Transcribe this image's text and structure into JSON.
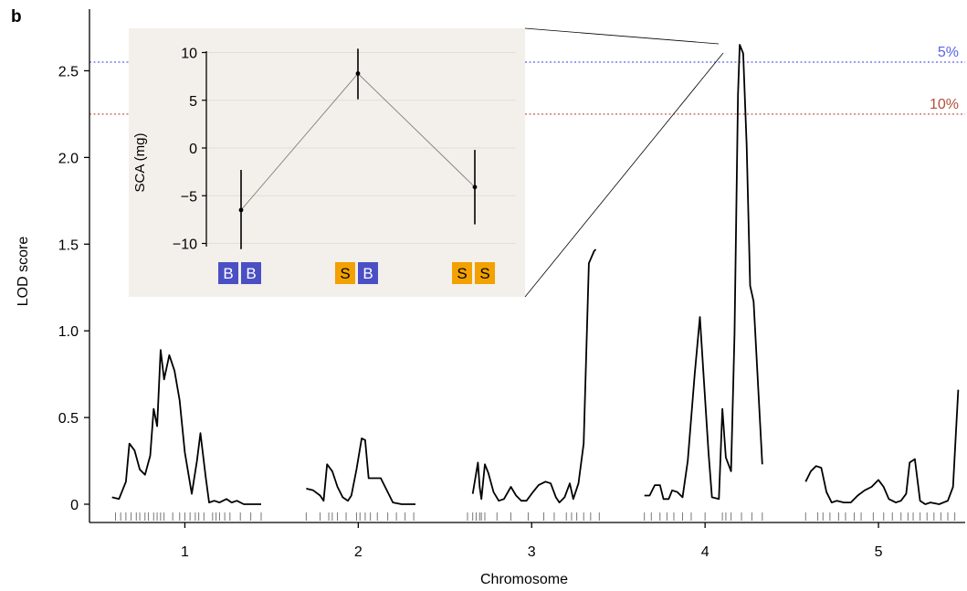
{
  "panel_label": "b",
  "chart_data": [
    {
      "type": "line",
      "xlabel": "Chromosome",
      "ylabel": "LOD score",
      "ylim": [
        0,
        2.75
      ],
      "yticks": [
        0,
        0.5,
        1.0,
        1.5,
        2.0,
        2.5
      ],
      "ytick_labels": [
        "0",
        "0.5",
        "1.0",
        "1.5",
        "2.0",
        "2.5"
      ],
      "xticks": [
        1,
        2,
        3,
        4,
        5
      ],
      "xtick_labels": [
        "1",
        "2",
        "3",
        "4",
        "5"
      ],
      "grid": false,
      "thresholds": [
        {
          "label": "5%",
          "value": 2.55,
          "color": "#5b63e6"
        },
        {
          "label": "10%",
          "value": 2.25,
          "color": "#b0503a"
        }
      ],
      "series": [
        {
          "chromosome": "1",
          "points": [
            [
              0.58,
              0.04
            ],
            [
              0.62,
              0.03
            ],
            [
              0.66,
              0.13
            ],
            [
              0.68,
              0.35
            ],
            [
              0.71,
              0.31
            ],
            [
              0.74,
              0.2
            ],
            [
              0.77,
              0.17
            ],
            [
              0.8,
              0.28
            ],
            [
              0.82,
              0.55
            ],
            [
              0.84,
              0.45
            ],
            [
              0.86,
              0.89
            ],
            [
              0.88,
              0.72
            ],
            [
              0.91,
              0.86
            ],
            [
              0.94,
              0.77
            ],
            [
              0.97,
              0.6
            ],
            [
              1.0,
              0.3
            ],
            [
              1.04,
              0.06
            ],
            [
              1.07,
              0.25
            ],
            [
              1.09,
              0.41
            ],
            [
              1.12,
              0.16
            ],
            [
              1.14,
              0.01
            ],
            [
              1.17,
              0.02
            ],
            [
              1.2,
              0.01
            ],
            [
              1.24,
              0.03
            ],
            [
              1.27,
              0.01
            ],
            [
              1.3,
              0.02
            ],
            [
              1.34,
              0.0
            ],
            [
              1.4,
              0.0
            ],
            [
              1.44,
              0.0
            ]
          ]
        },
        {
          "chromosome": "2",
          "points": [
            [
              1.7,
              0.09
            ],
            [
              1.74,
              0.08
            ],
            [
              1.78,
              0.05
            ],
            [
              1.8,
              0.02
            ],
            [
              1.82,
              0.23
            ],
            [
              1.85,
              0.19
            ],
            [
              1.88,
              0.1
            ],
            [
              1.91,
              0.04
            ],
            [
              1.94,
              0.02
            ],
            [
              1.96,
              0.05
            ],
            [
              1.99,
              0.2
            ],
            [
              2.02,
              0.38
            ],
            [
              2.04,
              0.37
            ],
            [
              2.06,
              0.15
            ],
            [
              2.1,
              0.15
            ],
            [
              2.13,
              0.15
            ],
            [
              2.16,
              0.09
            ],
            [
              2.2,
              0.01
            ],
            [
              2.25,
              0.0
            ],
            [
              2.3,
              0.0
            ],
            [
              2.33,
              0.0
            ]
          ]
        },
        {
          "chromosome": "3",
          "points": [
            [
              2.66,
              0.06
            ],
            [
              2.69,
              0.24
            ],
            [
              2.7,
              0.1
            ],
            [
              2.71,
              0.03
            ],
            [
              2.73,
              0.23
            ],
            [
              2.75,
              0.18
            ],
            [
              2.78,
              0.07
            ],
            [
              2.81,
              0.02
            ],
            [
              2.84,
              0.03
            ],
            [
              2.88,
              0.1
            ],
            [
              2.91,
              0.05
            ],
            [
              2.94,
              0.02
            ],
            [
              2.97,
              0.02
            ],
            [
              3.0,
              0.06
            ],
            [
              3.04,
              0.11
            ],
            [
              3.08,
              0.13
            ],
            [
              3.11,
              0.12
            ],
            [
              3.14,
              0.04
            ],
            [
              3.16,
              0.01
            ],
            [
              3.19,
              0.04
            ],
            [
              3.22,
              0.12
            ],
            [
              3.24,
              0.03
            ],
            [
              3.27,
              0.12
            ],
            [
              3.3,
              0.35
            ],
            [
              3.33,
              1.39
            ],
            [
              3.36,
              1.46
            ],
            [
              3.37,
              1.47
            ]
          ]
        },
        {
          "chromosome": "4",
          "points": [
            [
              3.65,
              0.05
            ],
            [
              3.68,
              0.05
            ],
            [
              3.71,
              0.11
            ],
            [
              3.74,
              0.11
            ],
            [
              3.76,
              0.03
            ],
            [
              3.79,
              0.03
            ],
            [
              3.81,
              0.08
            ],
            [
              3.84,
              0.07
            ],
            [
              3.87,
              0.04
            ],
            [
              3.9,
              0.25
            ],
            [
              3.94,
              0.75
            ],
            [
              3.97,
              1.08
            ],
            [
              3.99,
              0.77
            ],
            [
              4.02,
              0.3
            ],
            [
              4.04,
              0.04
            ],
            [
              4.08,
              0.03
            ],
            [
              4.1,
              0.55
            ],
            [
              4.12,
              0.27
            ],
            [
              4.15,
              0.19
            ],
            [
              4.17,
              0.98
            ],
            [
              4.19,
              2.36
            ],
            [
              4.2,
              2.65
            ],
            [
              4.22,
              2.6
            ],
            [
              4.24,
              2.07
            ],
            [
              4.26,
              1.26
            ],
            [
              4.28,
              1.17
            ],
            [
              4.33,
              0.23
            ]
          ]
        },
        {
          "chromosome": "5",
          "points": [
            [
              4.58,
              0.13
            ],
            [
              4.61,
              0.19
            ],
            [
              4.64,
              0.22
            ],
            [
              4.67,
              0.21
            ],
            [
              4.7,
              0.07
            ],
            [
              4.73,
              0.01
            ],
            [
              4.76,
              0.02
            ],
            [
              4.8,
              0.01
            ],
            [
              4.84,
              0.01
            ],
            [
              4.88,
              0.05
            ],
            [
              4.92,
              0.08
            ],
            [
              4.96,
              0.1
            ],
            [
              5.0,
              0.14
            ],
            [
              5.03,
              0.1
            ],
            [
              5.06,
              0.03
            ],
            [
              5.1,
              0.01
            ],
            [
              5.13,
              0.02
            ],
            [
              5.16,
              0.06
            ],
            [
              5.18,
              0.24
            ],
            [
              5.21,
              0.26
            ],
            [
              5.24,
              0.02
            ],
            [
              5.27,
              0.0
            ],
            [
              5.3,
              0.01
            ],
            [
              5.35,
              0.0
            ],
            [
              5.4,
              0.02
            ],
            [
              5.43,
              0.1
            ],
            [
              5.46,
              0.66
            ]
          ]
        }
      ],
      "markers": [
        0.6,
        0.63,
        0.66,
        0.69,
        0.72,
        0.74,
        0.77,
        0.79,
        0.82,
        0.84,
        0.86,
        0.88,
        0.93,
        0.97,
        1.0,
        1.03,
        1.06,
        1.08,
        1.11,
        1.16,
        1.18,
        1.2,
        1.23,
        1.26,
        1.32,
        1.38,
        1.44,
        1.7,
        1.78,
        1.83,
        1.85,
        1.88,
        1.93,
        1.99,
        2.01,
        2.04,
        2.07,
        2.11,
        2.17,
        2.22,
        2.27,
        2.32,
        2.63,
        2.66,
        2.68,
        2.7,
        2.71,
        2.73,
        2.8,
        2.88,
        2.98,
        3.07,
        3.13,
        3.2,
        3.23,
        3.26,
        3.3,
        3.34,
        3.39,
        3.65,
        3.69,
        3.74,
        3.78,
        3.82,
        3.87,
        3.92,
        4.0,
        4.1,
        4.12,
        4.15,
        4.21,
        4.27,
        4.33,
        4.58,
        4.65,
        4.68,
        4.72,
        4.77,
        4.81,
        4.86,
        4.9,
        4.97,
        5.03,
        5.08,
        5.13,
        5.17,
        5.2,
        5.24,
        5.28,
        5.32,
        5.36,
        5.4,
        5.44
      ]
    },
    {
      "type": "line",
      "inset": true,
      "ylabel": "SCA (mg)",
      "ylim": [
        -10.5,
        11
      ],
      "yticks": [
        -10,
        -5,
        0,
        5,
        10
      ],
      "ytick_labels": [
        "−10",
        "−5",
        "0",
        "5",
        "10"
      ],
      "grid": true,
      "categories": [
        {
          "alleles": [
            "B",
            "B"
          ],
          "value": -6.5,
          "err_low": -10.6,
          "err_high": -2.3
        },
        {
          "alleles": [
            "S",
            "B"
          ],
          "value": 7.8,
          "err_low": 5.1,
          "err_high": 10.4
        },
        {
          "alleles": [
            "S",
            "S"
          ],
          "value": -4.1,
          "err_low": -8.0,
          "err_high": -0.2
        }
      ]
    }
  ],
  "colors": {
    "allele_B": "#4b4fc4",
    "allele_S": "#f2a100",
    "inset_bg": "#f3f0eb",
    "line": "#000000"
  }
}
